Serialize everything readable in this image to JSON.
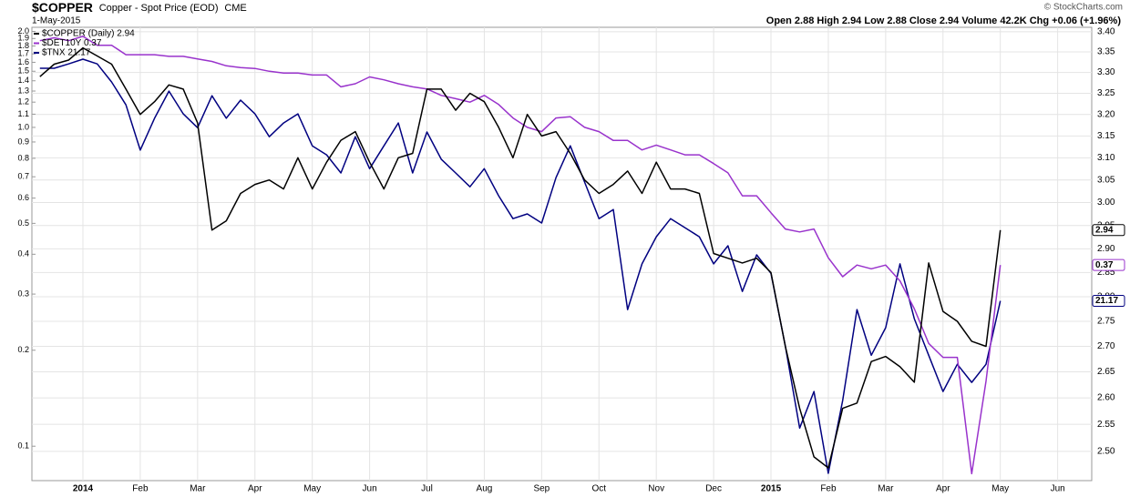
{
  "chart_data": {
    "type": "line",
    "title": "$COPPER",
    "subtitle": "Copper - Spot Price (EOD)",
    "exchange": "CME",
    "date": "1-May-2015",
    "stats": "Open 2.88 High 2.94 Low 2.88 Close 2.94 Volume 42.2K Chg +0.06 (+1.96%)",
    "credit": "© StockCharts.com",
    "x": [
      null,
      null,
      null,
      "2014",
      null,
      null,
      null,
      "Feb",
      null,
      null,
      null,
      "Mar",
      null,
      null,
      null,
      "Apr",
      null,
      null,
      null,
      "May",
      null,
      null,
      null,
      "Jun",
      null,
      null,
      null,
      "Jul",
      null,
      null,
      null,
      "Aug",
      null,
      null,
      null,
      "Sep",
      null,
      null,
      null,
      "Oct",
      null,
      null,
      null,
      "Nov",
      null,
      null,
      null,
      "Dec",
      null,
      null,
      null,
      "2015",
      null,
      null,
      null,
      "Feb",
      null,
      null,
      null,
      "Mar",
      null,
      null,
      null,
      "Apr",
      null,
      null,
      null,
      "May",
      null,
      null,
      null,
      "Jun",
      null,
      null
    ],
    "ylim": [
      0.078,
      2.06
    ],
    "ylog": true,
    "yticks": [
      0.1,
      0.2,
      0.3,
      0.4,
      0.5,
      0.6,
      0.7,
      0.8,
      0.9,
      {
        "value": 1,
        "label": "1.0"
      },
      1.1,
      1.2,
      1.3,
      1.4,
      1.5,
      1.6,
      1.7,
      1.8,
      1.9,
      {
        "value": 2,
        "label": "2.0"
      }
    ],
    "y2lim": [
      2.447,
      3.411
    ],
    "y2log": true,
    "y2ticks": [
      {
        "value": 2.5,
        "label": "2.50"
      },
      2.55,
      {
        "value": 2.6,
        "label": "2.60"
      },
      2.65,
      {
        "value": 2.7,
        "label": "2.70"
      },
      2.75,
      {
        "value": 2.8,
        "label": "2.80"
      },
      2.85,
      {
        "value": 2.9,
        "label": "2.90"
      },
      2.95,
      {
        "value": 3,
        "label": "3.00"
      },
      3.05,
      {
        "value": 3.1,
        "label": "3.10"
      },
      3.15,
      {
        "value": 3.2,
        "label": "3.20"
      },
      3.25,
      {
        "value": 3.3,
        "label": "3.30"
      },
      3.35,
      {
        "value": 3.4,
        "label": "3.40"
      }
    ],
    "y3lim": [
      16.21,
      28.72
    ],
    "grid": true,
    "series": [
      {
        "name": "$COPPER (Daily) 2.94",
        "color": "#000000",
        "axis": "y2",
        "values": [
          3.29,
          3.32,
          3.33,
          3.36,
          3.34,
          3.32,
          3.26,
          3.2,
          3.23,
          3.27,
          3.26,
          3.18,
          2.94,
          2.96,
          3.02,
          3.04,
          3.05,
          3.03,
          3.1,
          3.03,
          3.09,
          3.14,
          3.16,
          3.09,
          3.03,
          3.1,
          3.11,
          3.26,
          3.26,
          3.21,
          3.25,
          3.23,
          3.17,
          3.1,
          3.2,
          3.15,
          3.16,
          3.11,
          3.05,
          3.02,
          3.04,
          3.07,
          3.02,
          3.09,
          3.03,
          3.03,
          3.02,
          2.89,
          2.88,
          2.87,
          2.88,
          2.85,
          2.7,
          2.58,
          2.49,
          2.47,
          2.58,
          2.59,
          2.67,
          2.68,
          2.66,
          2.63,
          2.87,
          2.77,
          2.75,
          2.71,
          2.7,
          2.94,
          null,
          null,
          null,
          null,
          null,
          null
        ]
      },
      {
        "name": "$DET10Y 0.37",
        "color": "#9933cc",
        "axis": "y",
        "values": [
          1.87,
          1.91,
          1.87,
          1.93,
          1.81,
          1.81,
          1.69,
          1.69,
          1.69,
          1.67,
          1.67,
          1.64,
          1.61,
          1.56,
          1.54,
          1.53,
          1.5,
          1.48,
          1.48,
          1.46,
          1.46,
          1.34,
          1.37,
          1.44,
          1.41,
          1.37,
          1.34,
          1.32,
          1.26,
          1.23,
          1.2,
          1.26,
          1.18,
          1.07,
          1.0,
          0.97,
          1.07,
          1.08,
          1.0,
          0.97,
          0.91,
          0.91,
          0.85,
          0.88,
          0.85,
          0.82,
          0.82,
          0.77,
          0.72,
          0.61,
          0.61,
          0.54,
          0.48,
          0.47,
          0.48,
          0.39,
          0.34,
          0.37,
          0.36,
          0.37,
          0.33,
          0.27,
          0.21,
          0.19,
          0.19,
          0.082,
          0.16,
          0.37,
          null,
          null,
          null,
          null,
          null,
          null
        ]
      },
      {
        "name": "$TNX 21.17",
        "color": "#000080",
        "axis": "y3",
        "values": [
          27.59,
          27.59,
          27.71,
          27.84,
          27.71,
          27.21,
          26.58,
          25.33,
          26.21,
          26.96,
          26.33,
          25.95,
          26.83,
          26.21,
          26.71,
          26.33,
          25.7,
          26.08,
          26.33,
          25.45,
          25.2,
          24.7,
          25.7,
          24.82,
          25.45,
          26.08,
          24.7,
          25.83,
          25.08,
          24.7,
          24.32,
          24.82,
          24.07,
          23.44,
          23.57,
          23.32,
          24.57,
          25.45,
          24.45,
          23.44,
          23.69,
          20.93,
          22.19,
          22.94,
          23.44,
          23.19,
          22.94,
          22.19,
          22.69,
          21.43,
          22.44,
          21.93,
          19.92,
          17.66,
          18.67,
          16.41,
          18.42,
          20.93,
          19.67,
          20.43,
          22.19,
          20.68,
          19.67,
          18.67,
          19.42,
          18.92,
          19.42,
          21.17,
          null,
          null,
          null,
          null,
          null,
          null
        ]
      }
    ]
  }
}
